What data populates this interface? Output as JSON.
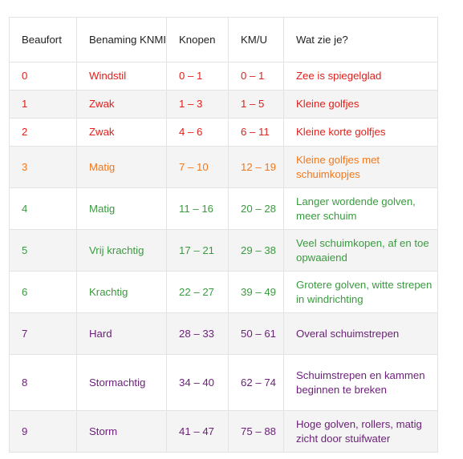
{
  "table": {
    "headers": [
      "Beaufort",
      "Benaming KNMI",
      "Knopen",
      "KM/U",
      "Wat zie je?"
    ],
    "colors": {
      "red": "#e0201b",
      "orange": "#f0781d",
      "green": "#3a9a3f",
      "purple": "#6b1f78"
    },
    "rows": [
      {
        "beaufort": "0",
        "benaming": "Windstil",
        "knopen": "0 – 1",
        "kmu": "0 – 1",
        "wat": "Zee is spiegelglad",
        "color": "red"
      },
      {
        "beaufort": "1",
        "benaming": "Zwak",
        "knopen": "1 – 3",
        "kmu": "1 – 5",
        "wat": "Kleine golfjes",
        "color": "red"
      },
      {
        "beaufort": "2",
        "benaming": "Zwak",
        "knopen": "4 – 6",
        "kmu": "6 – 11",
        "wat": "Kleine korte golfjes",
        "color": "red"
      },
      {
        "beaufort": "3",
        "benaming": "Matig",
        "knopen": "7 – 10",
        "kmu": "12 – 19",
        "wat": "Kleine golfjes met schuimkopjes",
        "color": "orange"
      },
      {
        "beaufort": "4",
        "benaming": "Matig",
        "knopen": "11 – 16",
        "kmu": "20 – 28",
        "wat": "Langer wordende golven, meer schuim",
        "color": "green"
      },
      {
        "beaufort": "5",
        "benaming": "Vrij krachtig",
        "knopen": "17 – 21",
        "kmu": "29 – 38",
        "wat": "Veel schuimkopen, af en toe opwaaiend",
        "color": "green"
      },
      {
        "beaufort": "6",
        "benaming": "Krachtig",
        "knopen": "22 – 27",
        "kmu": "39 – 49",
        "wat": "Grotere golven, witte strepen in windrichting",
        "color": "green"
      },
      {
        "beaufort": "7",
        "benaming": "Hard",
        "knopen": "28 – 33",
        "kmu": "50 – 61",
        "wat": "Overal schuimstrepen",
        "color": "purple"
      },
      {
        "beaufort": "8",
        "benaming": "Stormachtig",
        "knopen": "34 – 40",
        "kmu": "62 – 74",
        "wat": "Schuimstrepen en kammen beginnen te breken",
        "color": "purple"
      },
      {
        "beaufort": "9",
        "benaming": "Storm",
        "knopen": "41 – 47",
        "kmu": "75 – 88",
        "wat": "Hoge golven, rollers, matig zicht door stuifwater",
        "color": "purple"
      }
    ]
  }
}
